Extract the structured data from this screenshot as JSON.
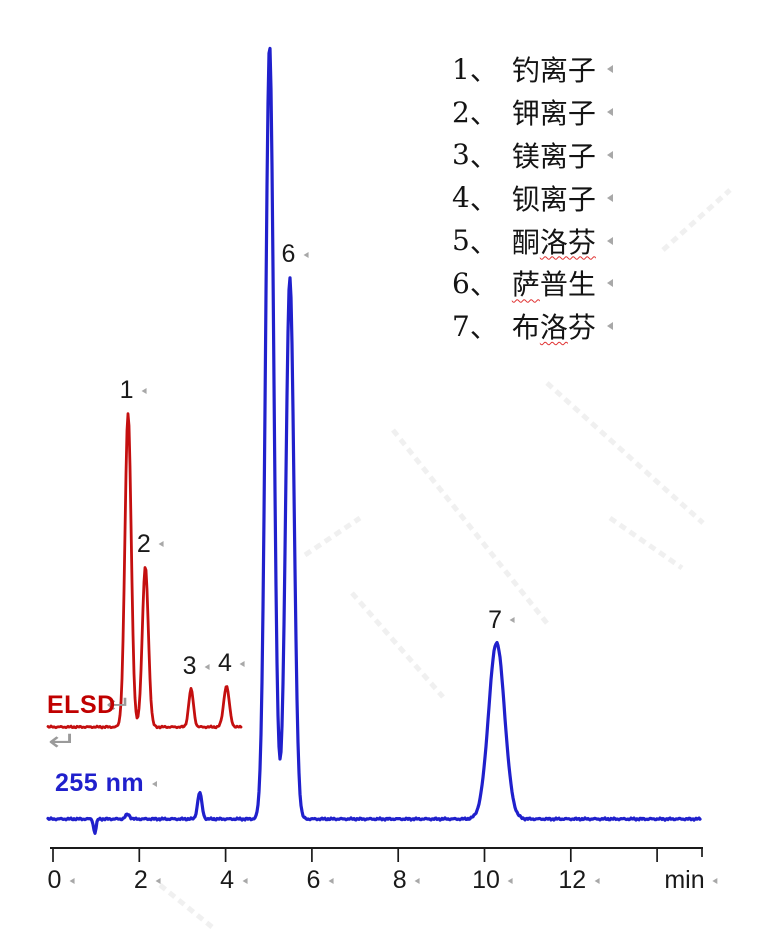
{
  "figure": {
    "kind": "HPLC chromatogram, dual detector overlay"
  },
  "labels": {
    "elsd": "ELSD",
    "uv": "255 nm",
    "x_unit": "min",
    "return_glyph": "↵"
  },
  "colors": {
    "red_trace": "#c40f0f",
    "red_label": "#c00000",
    "blue_trace": "#2020cc",
    "blue_label": "#2020cc",
    "axis": "#1a1a1a",
    "mark": "#a8a8a8",
    "squiggle": "#e03030",
    "watermark": "rgba(90,90,90,0.09)"
  },
  "legend": {
    "items": [
      {
        "num": "1",
        "sep": "、",
        "name": "钓离子",
        "squiggle": ""
      },
      {
        "num": "2",
        "sep": "、",
        "name": "钾离子",
        "squiggle": ""
      },
      {
        "num": "3",
        "sep": "、",
        "name": "镁离子",
        "squiggle": ""
      },
      {
        "num": "4",
        "sep": "、",
        "name": "钡离子",
        "squiggle": ""
      },
      {
        "num": "5",
        "sep": "、",
        "name": "酮洛芬",
        "squiggle": "洛芬"
      },
      {
        "num": "6",
        "sep": "、",
        "name": "萨普生",
        "squiggle": "萨"
      },
      {
        "num": "7",
        "sep": "、",
        "name": "布洛芬",
        "squiggle": "洛"
      }
    ]
  },
  "chart_data": {
    "type": "line",
    "title": "",
    "xlabel": "min",
    "ylabel": "",
    "grid": false,
    "legend_position": "top-right",
    "x_axis": {
      "tick_labels": [
        "0",
        "2",
        "4",
        "6",
        "8",
        "10",
        "12"
      ],
      "tick_values": [
        0,
        2,
        4,
        6,
        8,
        10,
        12
      ],
      "extra_tick_values": [
        14
      ],
      "range_min": [
        0,
        15
      ]
    },
    "series": [
      {
        "name": "ELSD",
        "detector": "ELSD",
        "color": "#c40f0f",
        "x_range_min": [
          -0.12,
          4.35
        ],
        "peaks": [
          {
            "num": "1",
            "analyte": "钓离子",
            "rt_min": 1.74,
            "rel_height": 1.0,
            "sigma_min": 0.073,
            "label_visible": true
          },
          {
            "num": "2",
            "analyte": "钾离子",
            "rt_min": 2.14,
            "rel_height": 0.51,
            "sigma_min": 0.07,
            "label_visible": true
          },
          {
            "num": "3",
            "analyte": "镁离子",
            "rt_min": 3.2,
            "rel_height": 0.12,
            "sigma_min": 0.055,
            "label_visible": true
          },
          {
            "num": "4",
            "analyte": "钡离子",
            "rt_min": 4.02,
            "rel_height": 0.13,
            "sigma_min": 0.065,
            "label_visible": true
          }
        ]
      },
      {
        "name": "255 nm",
        "detector": "UV 255 nm",
        "color": "#2020cc",
        "x_range_min": [
          -0.12,
          15.0
        ],
        "peaks": [
          {
            "num": "",
            "analyte": "injection dip",
            "rt_min": 0.97,
            "rel_height": -0.018,
            "sigma_min": 0.03,
            "label_visible": false
          },
          {
            "num": "",
            "analyte": "baseline bump",
            "rt_min": 1.73,
            "rel_height": 0.006,
            "sigma_min": 0.05,
            "label_visible": false
          },
          {
            "num": "",
            "analyte": "system peak",
            "rt_min": 3.4,
            "rel_height": 0.034,
            "sigma_min": 0.05,
            "label_visible": false
          },
          {
            "num": "5",
            "analyte": "酮洛芬",
            "rt_min": 5.02,
            "rel_height": 1.0,
            "sigma_min": 0.095,
            "label_visible": false
          },
          {
            "num": "6",
            "analyte": "萨普生",
            "rt_min": 5.49,
            "rel_height": 0.7,
            "sigma_min": 0.095,
            "label_visible": true
          },
          {
            "num": "7",
            "analyte": "布洛芬",
            "rt_min": 10.28,
            "rel_height": 0.228,
            "sigma_min": 0.185,
            "label_visible": true
          }
        ]
      }
    ]
  }
}
